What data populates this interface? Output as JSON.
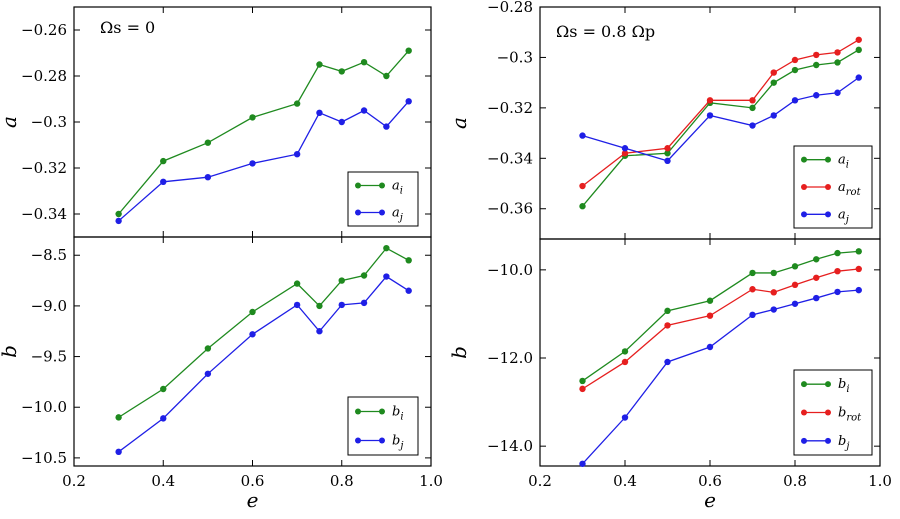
{
  "chart_data": [
    {
      "id": "top-left",
      "type": "line",
      "annotation": "Ωs = 0",
      "xlabel": "",
      "ylabel": "a",
      "xlim": [
        0.2,
        1.0
      ],
      "ylim": [
        -0.35,
        -0.25
      ],
      "yticks": [
        -0.26,
        -0.28,
        -0.3,
        -0.32,
        -0.34
      ],
      "ytick_labels": [
        "−0.26",
        "−0.28",
        "−0.3",
        "−0.32",
        "−0.34"
      ],
      "xticks": [],
      "xtick_labels": [],
      "legend": "bottom-right",
      "x": [
        0.3,
        0.4,
        0.5,
        0.6,
        0.7,
        0.75,
        0.8,
        0.85,
        0.9,
        0.95
      ],
      "series": [
        {
          "name": "a_i",
          "label": "a",
          "sub": "i",
          "color": "#1f8a1f",
          "values": [
            -0.34,
            -0.317,
            -0.309,
            -0.298,
            -0.292,
            -0.275,
            -0.278,
            -0.274,
            -0.28,
            -0.269
          ]
        },
        {
          "name": "a_j",
          "label": "a",
          "sub": "j",
          "color": "#1f1fe6",
          "values": [
            -0.343,
            -0.326,
            -0.324,
            -0.318,
            -0.314,
            -0.296,
            -0.3,
            -0.295,
            -0.302,
            -0.291
          ]
        }
      ]
    },
    {
      "id": "top-right",
      "type": "line",
      "annotation": "Ωs = 0.8 Ωp",
      "xlabel": "",
      "ylabel": "a",
      "xlim": [
        0.2,
        1.0
      ],
      "ylim": [
        -0.372,
        -0.28
      ],
      "yticks": [
        -0.28,
        -0.3,
        -0.32,
        -0.34,
        -0.36
      ],
      "ytick_labels": [
        "−0.28",
        "−0.3",
        "−0.32",
        "−0.34",
        "−0.36"
      ],
      "xticks": [],
      "xtick_labels": [],
      "legend": "bottom-right",
      "x": [
        0.3,
        0.4,
        0.5,
        0.6,
        0.7,
        0.75,
        0.8,
        0.85,
        0.9,
        0.95
      ],
      "series": [
        {
          "name": "a_i",
          "label": "a",
          "sub": "i",
          "color": "#1f8a1f",
          "values": [
            -0.359,
            -0.339,
            -0.338,
            -0.318,
            -0.32,
            -0.31,
            -0.305,
            -0.303,
            -0.302,
            -0.297
          ]
        },
        {
          "name": "a_rot",
          "label": "a",
          "sub": "rot",
          "color": "#e61f1f",
          "values": [
            -0.351,
            -0.338,
            -0.336,
            -0.317,
            -0.317,
            -0.306,
            -0.301,
            -0.299,
            -0.298,
            -0.293
          ]
        },
        {
          "name": "a_j",
          "label": "a",
          "sub": "j",
          "color": "#1f1fe6",
          "values": [
            -0.331,
            -0.336,
            -0.341,
            -0.323,
            -0.327,
            -0.323,
            -0.317,
            -0.315,
            -0.314,
            -0.308
          ]
        }
      ]
    },
    {
      "id": "bottom-left",
      "type": "line",
      "annotation": "",
      "xlabel": "e",
      "ylabel": "b",
      "xlim": [
        0.2,
        1.0
      ],
      "ylim": [
        -10.58,
        -8.32
      ],
      "yticks": [
        -8.5,
        -9.0,
        -9.5,
        -10.0,
        -10.5
      ],
      "ytick_labels": [
        "−8.5",
        "−9.0",
        "−9.5",
        "−10.0",
        "−10.5"
      ],
      "xticks": [
        0.2,
        0.4,
        0.6,
        0.8,
        1.0
      ],
      "xtick_labels": [
        "0.2",
        "0.4",
        "0.6",
        "0.8",
        "1.0"
      ],
      "legend": "bottom-right",
      "x": [
        0.3,
        0.4,
        0.5,
        0.6,
        0.7,
        0.75,
        0.8,
        0.85,
        0.9,
        0.95
      ],
      "series": [
        {
          "name": "b_i",
          "label": "b",
          "sub": "i",
          "color": "#1f8a1f",
          "values": [
            -10.1,
            -9.82,
            -9.42,
            -9.06,
            -8.78,
            -9.0,
            -8.75,
            -8.7,
            -8.43,
            -8.55
          ]
        },
        {
          "name": "b_j",
          "label": "b",
          "sub": "j",
          "color": "#1f1fe6",
          "values": [
            -10.44,
            -10.11,
            -9.67,
            -9.28,
            -8.99,
            -9.25,
            -8.99,
            -8.97,
            -8.71,
            -8.85
          ]
        }
      ]
    },
    {
      "id": "bottom-right",
      "type": "line",
      "annotation": "",
      "xlabel": "e",
      "ylabel": "b",
      "xlim": [
        0.2,
        1.0
      ],
      "ylim": [
        -14.45,
        -9.3
      ],
      "yticks": [
        -10.0,
        -12.0,
        -14.0
      ],
      "ytick_labels": [
        "−10.0",
        "−12.0",
        "−14.0"
      ],
      "xticks": [
        0.2,
        0.4,
        0.6,
        0.8,
        1.0
      ],
      "xtick_labels": [
        "0.2",
        "0.4",
        "0.6",
        "0.8",
        "1.0"
      ],
      "legend": "bottom-right",
      "x": [
        0.3,
        0.4,
        0.5,
        0.6,
        0.7,
        0.75,
        0.8,
        0.85,
        0.9,
        0.95
      ],
      "series": [
        {
          "name": "b_i",
          "label": "b",
          "sub": "i",
          "color": "#1f8a1f",
          "values": [
            -12.52,
            -11.85,
            -10.93,
            -10.7,
            -10.07,
            -10.07,
            -9.92,
            -9.76,
            -9.62,
            -9.58
          ]
        },
        {
          "name": "b_rot",
          "label": "b",
          "sub": "rot",
          "color": "#e61f1f",
          "values": [
            -12.7,
            -12.09,
            -11.26,
            -11.04,
            -10.44,
            -10.51,
            -10.34,
            -10.18,
            -10.03,
            -9.98
          ]
        },
        {
          "name": "b_j",
          "label": "b",
          "sub": "j",
          "color": "#1f1fe6",
          "values": [
            -14.4,
            -13.35,
            -12.09,
            -11.75,
            -11.02,
            -10.9,
            -10.77,
            -10.64,
            -10.5,
            -10.46
          ]
        }
      ]
    }
  ]
}
